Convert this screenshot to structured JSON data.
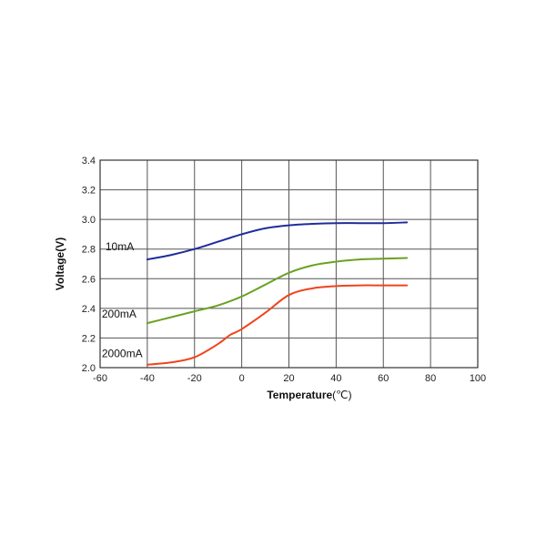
{
  "chart_data": {
    "type": "line",
    "xlabel": "Temperature",
    "xlabel_unit": "(℃)",
    "ylabel": "Voltage(V)",
    "xlim": [
      -60,
      100
    ],
    "ylim": [
      2.0,
      3.4
    ],
    "xticks": [
      "-60",
      "-40",
      "-20",
      "0",
      "20",
      "40",
      "60",
      "80",
      "100"
    ],
    "yticks": [
      "2.0",
      "2.2",
      "2.4",
      "2.6",
      "2.8",
      "3.0",
      "3.2",
      "3.4"
    ],
    "grid": true,
    "series": [
      {
        "name": "10mA",
        "color": "#1f2c9b",
        "x": [
          -40,
          -30,
          -20,
          -10,
          0,
          10,
          20,
          30,
          40,
          50,
          60,
          70
        ],
        "y": [
          2.73,
          2.76,
          2.8,
          2.85,
          2.9,
          2.94,
          2.96,
          2.97,
          2.975,
          2.975,
          2.975,
          2.98
        ]
      },
      {
        "name": "200mA",
        "color": "#6aa121",
        "x": [
          -40,
          -30,
          -20,
          -10,
          0,
          10,
          20,
          30,
          40,
          50,
          60,
          70
        ],
        "y": [
          2.3,
          2.34,
          2.38,
          2.42,
          2.48,
          2.56,
          2.64,
          2.69,
          2.715,
          2.73,
          2.735,
          2.74
        ]
      },
      {
        "name": "2000mA",
        "color": "#f0441c",
        "x": [
          -40,
          -30,
          -20,
          -10,
          -5,
          0,
          10,
          20,
          30,
          40,
          50,
          60,
          70
        ],
        "y": [
          2.02,
          2.035,
          2.07,
          2.16,
          2.22,
          2.26,
          2.37,
          2.49,
          2.535,
          2.55,
          2.555,
          2.555,
          2.555
        ]
      }
    ]
  }
}
